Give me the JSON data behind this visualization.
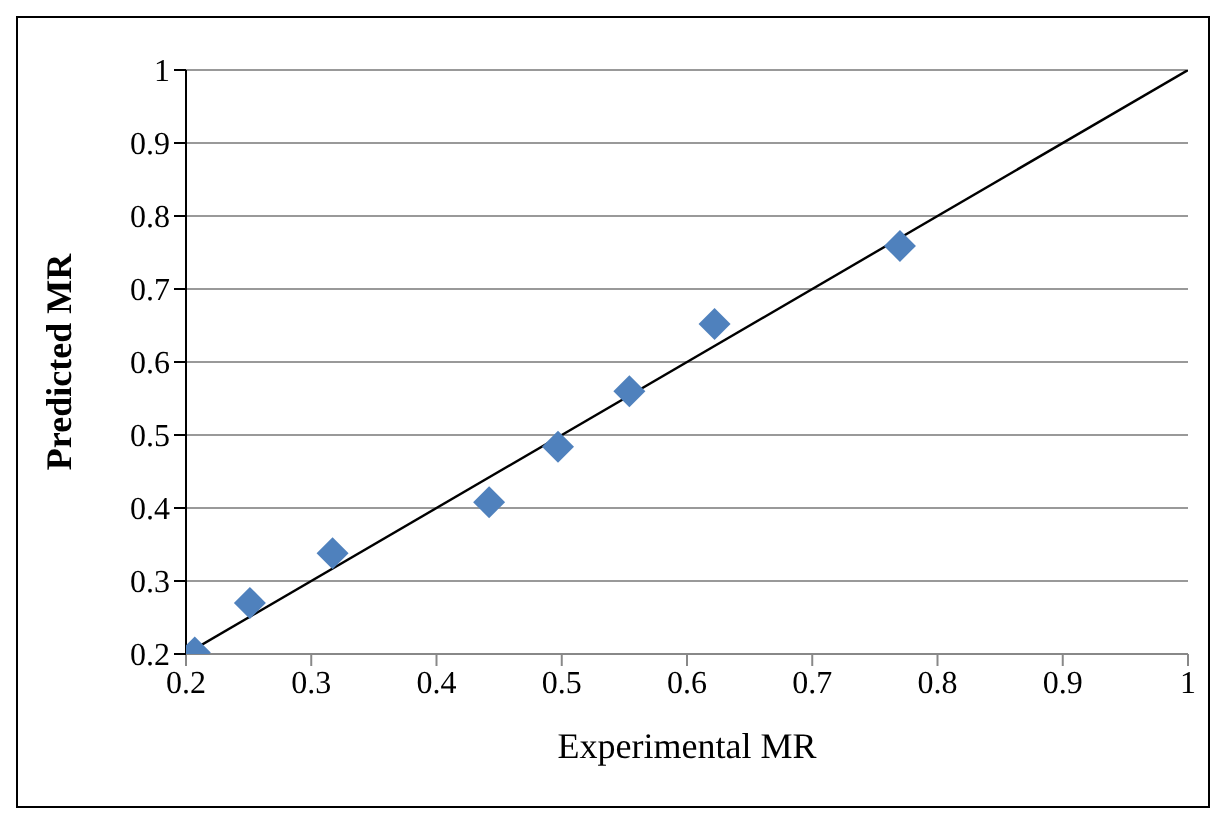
{
  "chart_data": {
    "type": "scatter",
    "xlabel": "Experimental MR",
    "ylabel": "Predicted MR",
    "x": [
      0.207,
      0.251,
      0.317,
      0.442,
      0.497,
      0.554,
      0.622,
      0.77
    ],
    "series": [
      {
        "color": "#4f81bd",
        "values": [
          0.202,
          0.27,
          0.338,
          0.408,
          0.484,
          0.56,
          0.652,
          0.759
        ],
        "marker": "diamond"
      },
      {
        "type": "line",
        "color": "#000000",
        "x": [
          0.2,
          1
        ],
        "values": [
          0.2,
          1
        ],
        "marker": "none"
      }
    ],
    "xlim": [
      0.2,
      1
    ],
    "ylim": [
      0.2,
      1
    ],
    "xticks": [
      0.2,
      0.3,
      0.4,
      0.5,
      0.6,
      0.7,
      0.8,
      0.9,
      1
    ],
    "yticks": [
      0.2,
      0.3,
      0.4,
      0.5,
      0.6,
      0.7,
      0.8,
      0.9,
      1
    ],
    "grid": "y",
    "legend": false
  }
}
